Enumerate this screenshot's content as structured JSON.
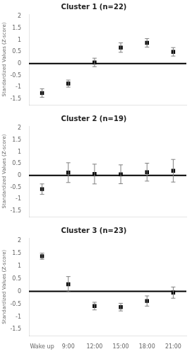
{
  "chart_data": [
    {
      "type": "line",
      "title": "Cluster 1 (n=22)",
      "ylabel": "Standardized Values (Z-score)",
      "categories": [
        "Wake up",
        "9:00",
        "12:00",
        "15:00",
        "18:00",
        "21:00"
      ],
      "values": [
        -1.25,
        -0.85,
        0.05,
        0.68,
        0.88,
        0.5
      ],
      "errors": [
        0.18,
        0.15,
        0.18,
        0.2,
        0.18,
        0.18
      ],
      "color": "black",
      "marker": "square",
      "line_style": "none",
      "ylim": [
        -1.75,
        2.1
      ],
      "yticks": [
        -1.5,
        -1,
        -0.5,
        0,
        0.5,
        1,
        1.5,
        2
      ],
      "grid": false,
      "tick_labels": "y"
    },
    {
      "type": "line",
      "title": "Cluster 2 (n=19)",
      "ylabel": "Standardized Values (Z-score)",
      "categories": [
        "Wake up",
        "9:00",
        "12:00",
        "15:00",
        "18:00",
        "21:00"
      ],
      "values": [
        -0.58,
        0.12,
        0.06,
        0.05,
        0.14,
        0.2
      ],
      "errors": [
        0.22,
        0.42,
        0.42,
        0.4,
        0.38,
        0.48
      ],
      "color": "black",
      "marker": "square",
      "line_style": "none",
      "ylim": [
        -1.75,
        2.1
      ],
      "yticks": [
        -1.5,
        -1,
        -0.5,
        0,
        0.5,
        1,
        1.5,
        2
      ],
      "grid": false,
      "tick_labels": "y"
    },
    {
      "type": "line",
      "title": "Cluster 3 (n=23)",
      "ylabel": "Standardized Values (Z-score)",
      "categories": [
        "Wake up",
        "9:00",
        "12:00",
        "15:00",
        "18:00",
        "21:00"
      ],
      "values": [
        1.38,
        0.28,
        -0.58,
        -0.62,
        -0.38,
        -0.05
      ],
      "errors": [
        0.12,
        0.3,
        0.15,
        0.15,
        0.2,
        0.22
      ],
      "color": "black",
      "marker": "square",
      "line_style": "none",
      "ylim": [
        -1.75,
        2.1
      ],
      "yticks": [
        -1.5,
        -1,
        -0.5,
        0,
        0.5,
        1,
        1.5,
        2
      ],
      "grid": false
    }
  ]
}
